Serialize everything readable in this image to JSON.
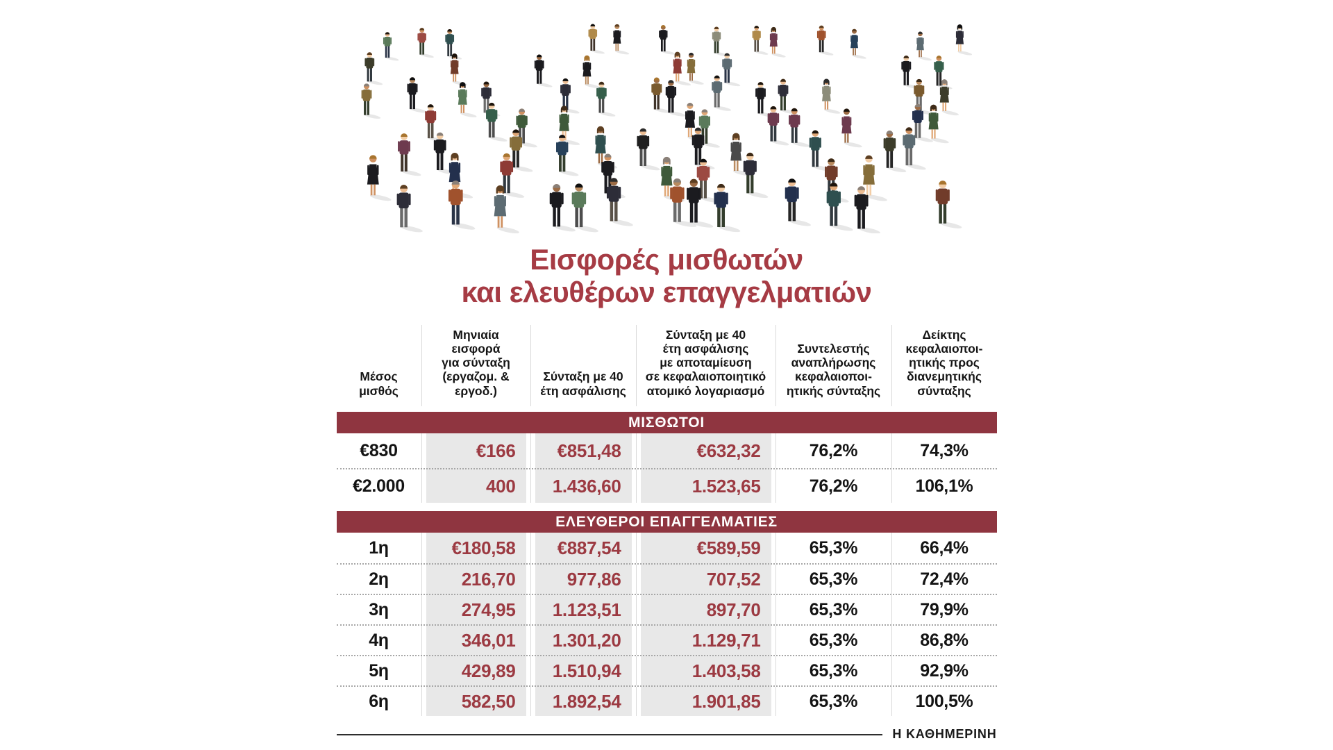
{
  "title": {
    "line1": "Εισφορές μισθωτών",
    "line2": "και ελευθέρων επαγγελματιών"
  },
  "table": {
    "headers_display": [
      "Μέσος\nμισθός",
      "Μηνιαία\nεισφορά\nγια σύνταξη\n(εργαζομ. & εργοδ.)",
      "Σύνταξη με 40\nέτη ασφάλισης",
      "Σύνταξη με 40\nέτη ασφάλισης\nμε αποταμίευση\nσε κεφαλαιοποιητικό\nατομικό λογαριασμό",
      "Συντελεστής\nαναπλήρωσης\nκεφαλαιοποι-\nητικής σύνταξης",
      "Δείκτης\nκεφαλαιοποι-\nητικής προς\nδιανεμητικής\nσύνταξης"
    ]
  },
  "chart_data": {
    "type": "table",
    "title": "Εισφορές μισθωτών και ελευθέρων επαγγελματιών",
    "columns": [
      "Μέσος μισθός",
      "Μηνιαία εισφορά για σύνταξη (εργαζομ. & εργοδ.)",
      "Σύνταξη με 40 έτη ασφάλισης",
      "Σύνταξη με 40 έτη ασφάλισης με αποταμίευση σε κεφαλαιοποιητικό ατομικό λογαριασμό",
      "Συντελεστής αναπλήρωσης κεφαλαιοποιητικής σύνταξης",
      "Δείκτης κεφαλαιοποιητικής προς διανεμητικής σύνταξης"
    ],
    "groups": [
      {
        "label": "ΜΙΣΘΩΤΟΙ",
        "rows": [
          [
            "€830",
            "€166",
            "€851,48",
            "€632,32",
            "76,2%",
            "74,3%"
          ],
          [
            "€2.000",
            "400",
            "1.436,60",
            "1.523,65",
            "76,2%",
            "106,1%"
          ]
        ]
      },
      {
        "label": "ΕΛΕΥΘΕΡΟΙ ΕΠΑΓΓΕΛΜΑΤΙΕΣ",
        "rows": [
          [
            "1η",
            "€180,58",
            "€887,54",
            "€589,59",
            "65,3%",
            "66,4%"
          ],
          [
            "2η",
            "216,70",
            "977,86",
            "707,52",
            "65,3%",
            "72,4%"
          ],
          [
            "3η",
            "274,95",
            "1.123,51",
            "897,70",
            "65,3%",
            "79,9%"
          ],
          [
            "4η",
            "346,01",
            "1.301,20",
            "1.129,71",
            "65,3%",
            "86,8%"
          ],
          [
            "5η",
            "429,89",
            "1.510,94",
            "1.403,58",
            "65,3%",
            "92,9%"
          ],
          [
            "6η",
            "582,50",
            "1.892,54",
            "1.901,85",
            "65,3%",
            "100,5%"
          ]
        ]
      }
    ]
  },
  "footer": {
    "source": "Η ΚΑΘΗΜΕΡΙΝΗ"
  },
  "colors": {
    "accent": "#a63b44",
    "section_bar": "#8f3540",
    "value_text": "#9c3a42",
    "value_bg": "#e8e8e8",
    "text": "#141414"
  }
}
